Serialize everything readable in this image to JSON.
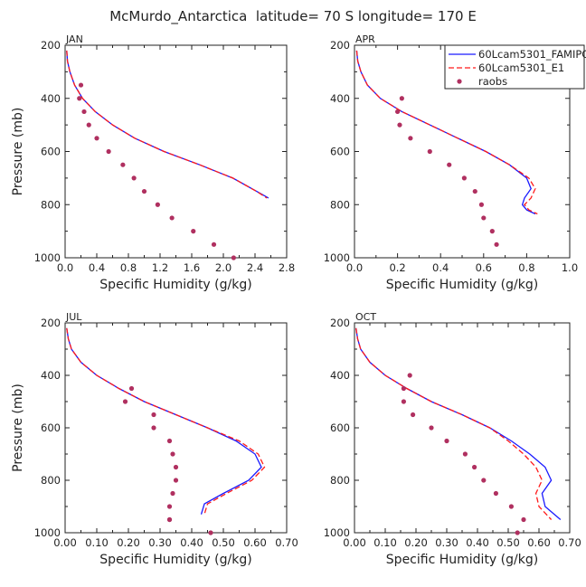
{
  "figure_title": "McMurdo_Antarctica  latitude= 70 S longitude= 170 E",
  "legend": {
    "entries": [
      {
        "label": "60Lcam5301_FAMIPC5",
        "color": "#1a1aff",
        "style": "solid"
      },
      {
        "label": "60Lcam5301_E1",
        "color": "#ff1a1a",
        "style": "dashed"
      },
      {
        "label": "raobs",
        "color": "#b03060",
        "style": "marker"
      }
    ]
  },
  "colors": {
    "model_fam": "#1a1aff",
    "model_e1": "#ff1a1a",
    "raobs": "#b03060"
  },
  "chart_data": [
    {
      "type": "line",
      "panel_label": "JAN",
      "xlabel": "Specific Humidity (g/kg)",
      "ylabel": "Pressure (mb)",
      "xlim": [
        0,
        2.8
      ],
      "ylim": [
        1000,
        200
      ],
      "xticks": [
        "0.0",
        "0.4",
        "0.8",
        "1.2",
        "1.6",
        "2.0",
        "2.4",
        "2.8"
      ],
      "yticks": [
        "200",
        "400",
        "600",
        "800",
        "1000"
      ],
      "series": [
        {
          "name": "60Lcam5301_FAMIPC5",
          "style": "solid",
          "x": [
            0.02,
            0.03,
            0.06,
            0.12,
            0.22,
            0.38,
            0.6,
            0.88,
            1.25,
            1.7,
            2.12,
            2.42,
            2.57
          ],
          "y": [
            220,
            260,
            300,
            350,
            400,
            450,
            500,
            550,
            600,
            650,
            700,
            750,
            775
          ]
        },
        {
          "name": "60Lcam5301_E1",
          "style": "dashed",
          "x": [
            0.02,
            0.03,
            0.06,
            0.12,
            0.22,
            0.38,
            0.6,
            0.88,
            1.25,
            1.7,
            2.12,
            2.42,
            2.55
          ],
          "y": [
            220,
            260,
            300,
            350,
            400,
            450,
            500,
            550,
            600,
            650,
            700,
            750,
            775
          ]
        },
        {
          "name": "raobs",
          "style": "marker",
          "x": [
            0.2,
            0.18,
            0.24,
            0.3,
            0.4,
            0.55,
            0.73,
            0.87,
            1.0,
            1.17,
            1.35,
            1.62,
            1.88,
            2.13
          ],
          "y": [
            350,
            400,
            450,
            500,
            550,
            600,
            650,
            700,
            750,
            800,
            850,
            900,
            950,
            1000
          ]
        }
      ]
    },
    {
      "type": "line",
      "panel_label": "APR",
      "xlabel": "Specific Humidity (g/kg)",
      "ylabel": "",
      "xlim": [
        0,
        1.0
      ],
      "ylim": [
        1000,
        200
      ],
      "xticks": [
        "0.0",
        "0.2",
        "0.4",
        "0.6",
        "0.8",
        "1.0"
      ],
      "yticks": [
        "200",
        "400",
        "600",
        "800",
        "1000"
      ],
      "series": [
        {
          "name": "60Lcam5301_FAMIPC5",
          "style": "solid",
          "x": [
            0.01,
            0.015,
            0.03,
            0.06,
            0.12,
            0.22,
            0.35,
            0.48,
            0.61,
            0.72,
            0.8,
            0.82,
            0.79,
            0.78,
            0.8,
            0.84
          ],
          "y": [
            220,
            260,
            300,
            350,
            400,
            450,
            500,
            550,
            600,
            650,
            700,
            740,
            775,
            800,
            820,
            835
          ]
        },
        {
          "name": "60Lcam5301_E1",
          "style": "dashed",
          "x": [
            0.01,
            0.015,
            0.03,
            0.06,
            0.12,
            0.22,
            0.35,
            0.48,
            0.61,
            0.72,
            0.81,
            0.84,
            0.82,
            0.79,
            0.81,
            0.85
          ],
          "y": [
            220,
            260,
            300,
            350,
            400,
            450,
            500,
            550,
            600,
            650,
            700,
            740,
            775,
            800,
            820,
            835
          ]
        },
        {
          "name": "raobs",
          "style": "marker",
          "x": [
            0.22,
            0.2,
            0.21,
            0.26,
            0.35,
            0.44,
            0.51,
            0.56,
            0.59,
            0.6,
            0.64,
            0.66
          ],
          "y": [
            400,
            450,
            500,
            550,
            600,
            650,
            700,
            750,
            800,
            850,
            900,
            950
          ]
        }
      ]
    },
    {
      "type": "line",
      "panel_label": "JUL",
      "xlabel": "Specific Humidity (g/kg)",
      "ylabel": "Pressure (mb)",
      "xlim": [
        0,
        0.7
      ],
      "ylim": [
        1000,
        200
      ],
      "xticks": [
        "0.00",
        "0.10",
        "0.20",
        "0.30",
        "0.40",
        "0.50",
        "0.60",
        "0.70"
      ],
      "yticks": [
        "200",
        "400",
        "600",
        "800",
        "1000"
      ],
      "series": [
        {
          "name": "60Lcam5301_FAMIPC5",
          "style": "solid",
          "x": [
            0.005,
            0.01,
            0.02,
            0.05,
            0.1,
            0.17,
            0.25,
            0.35,
            0.45,
            0.54,
            0.6,
            0.62,
            0.58,
            0.5,
            0.44,
            0.43
          ],
          "y": [
            220,
            260,
            300,
            350,
            400,
            450,
            500,
            550,
            600,
            650,
            700,
            750,
            800,
            850,
            890,
            930
          ]
        },
        {
          "name": "60Lcam5301_E1",
          "style": "dashed",
          "x": [
            0.005,
            0.01,
            0.02,
            0.05,
            0.1,
            0.17,
            0.25,
            0.35,
            0.45,
            0.55,
            0.61,
            0.63,
            0.59,
            0.51,
            0.45,
            0.44
          ],
          "y": [
            220,
            260,
            300,
            350,
            400,
            450,
            500,
            550,
            600,
            650,
            700,
            750,
            800,
            850,
            890,
            930
          ]
        },
        {
          "name": "raobs",
          "style": "marker",
          "x": [
            0.21,
            0.19,
            0.28,
            0.28,
            0.33,
            0.34,
            0.35,
            0.35,
            0.34,
            0.33,
            0.33,
            0.33,
            0.46
          ],
          "y": [
            450,
            500,
            550,
            600,
            650,
            700,
            750,
            800,
            850,
            900,
            950,
            950,
            1000
          ]
        }
      ]
    },
    {
      "type": "line",
      "panel_label": "OCT",
      "xlabel": "Specific Humidity (g/kg)",
      "ylabel": "",
      "xlim": [
        0,
        0.7
      ],
      "ylim": [
        1000,
        200
      ],
      "xticks": [
        "0.00",
        "0.10",
        "0.20",
        "0.30",
        "0.40",
        "0.50",
        "0.60",
        "0.70"
      ],
      "yticks": [
        "200",
        "400",
        "600",
        "800",
        "1000"
      ],
      "series": [
        {
          "name": "60Lcam5301_FAMIPC5",
          "style": "solid",
          "x": [
            0.005,
            0.01,
            0.02,
            0.05,
            0.1,
            0.17,
            0.25,
            0.35,
            0.44,
            0.51,
            0.57,
            0.62,
            0.64,
            0.61,
            0.62,
            0.67
          ],
          "y": [
            220,
            260,
            300,
            350,
            400,
            450,
            500,
            550,
            600,
            650,
            700,
            750,
            800,
            850,
            900,
            950
          ]
        },
        {
          "name": "60Lcam5301_E1",
          "style": "dashed",
          "x": [
            0.005,
            0.01,
            0.02,
            0.05,
            0.1,
            0.17,
            0.25,
            0.35,
            0.44,
            0.5,
            0.55,
            0.59,
            0.61,
            0.59,
            0.6,
            0.64
          ],
          "y": [
            220,
            260,
            300,
            350,
            400,
            450,
            500,
            550,
            600,
            650,
            700,
            750,
            800,
            850,
            900,
            950
          ]
        },
        {
          "name": "raobs",
          "style": "marker",
          "x": [
            0.18,
            0.16,
            0.16,
            0.19,
            0.25,
            0.3,
            0.36,
            0.39,
            0.42,
            0.46,
            0.51,
            0.55,
            0.53
          ],
          "y": [
            400,
            450,
            500,
            550,
            600,
            650,
            700,
            750,
            800,
            850,
            900,
            950,
            1000
          ]
        }
      ]
    }
  ]
}
